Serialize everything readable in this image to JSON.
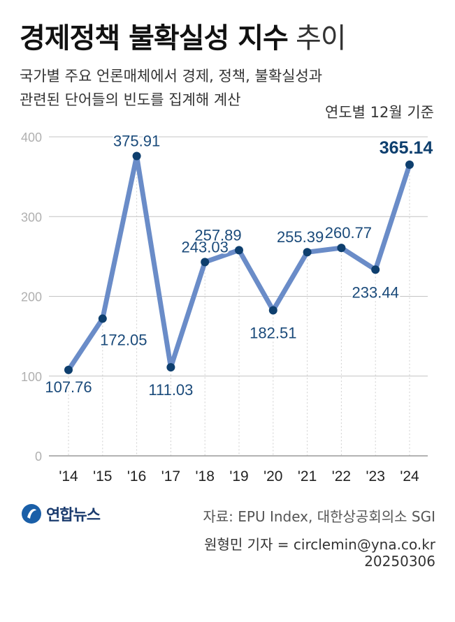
{
  "header": {
    "title_bold": "경제정책 불확실성 지수",
    "title_light": "추이",
    "subtitle_line1": "국가별 주요 언론매체에서 경제, 정책, 불확실성과",
    "subtitle_line2": "관련된 단어들의 빈도를 집계해 계산",
    "basis": "연도별 12월 기준"
  },
  "chart_data": {
    "type": "line",
    "categories": [
      "'14",
      "'15",
      "'16",
      "'17",
      "'18",
      "'19",
      "'20",
      "'21",
      "'22",
      "'23",
      "'24"
    ],
    "values": [
      107.76,
      172.05,
      375.91,
      111.03,
      243.03,
      257.89,
      182.51,
      255.39,
      260.77,
      233.44,
      365.14
    ],
    "value_labels": [
      "107.76",
      "172.05",
      "375.91",
      "111.03",
      "243.03",
      "257.89",
      "182.51",
      "255.39",
      "260.77",
      "233.44",
      "365.14"
    ],
    "ylim": [
      0,
      400
    ],
    "yticks": [
      0,
      100,
      200,
      300,
      400
    ],
    "grid": true,
    "line_color": "#6a8cc8",
    "marker_color": "#0e3f6e",
    "label_color": "#1a4a7a",
    "highlight_last": true
  },
  "footer": {
    "logo_text": "연합뉴스",
    "source": "자료: EPU Index, 대한상공회의소 SGI",
    "credit": "원형민 기자 = circlemin@yna.co.kr",
    "date": "20250306"
  }
}
